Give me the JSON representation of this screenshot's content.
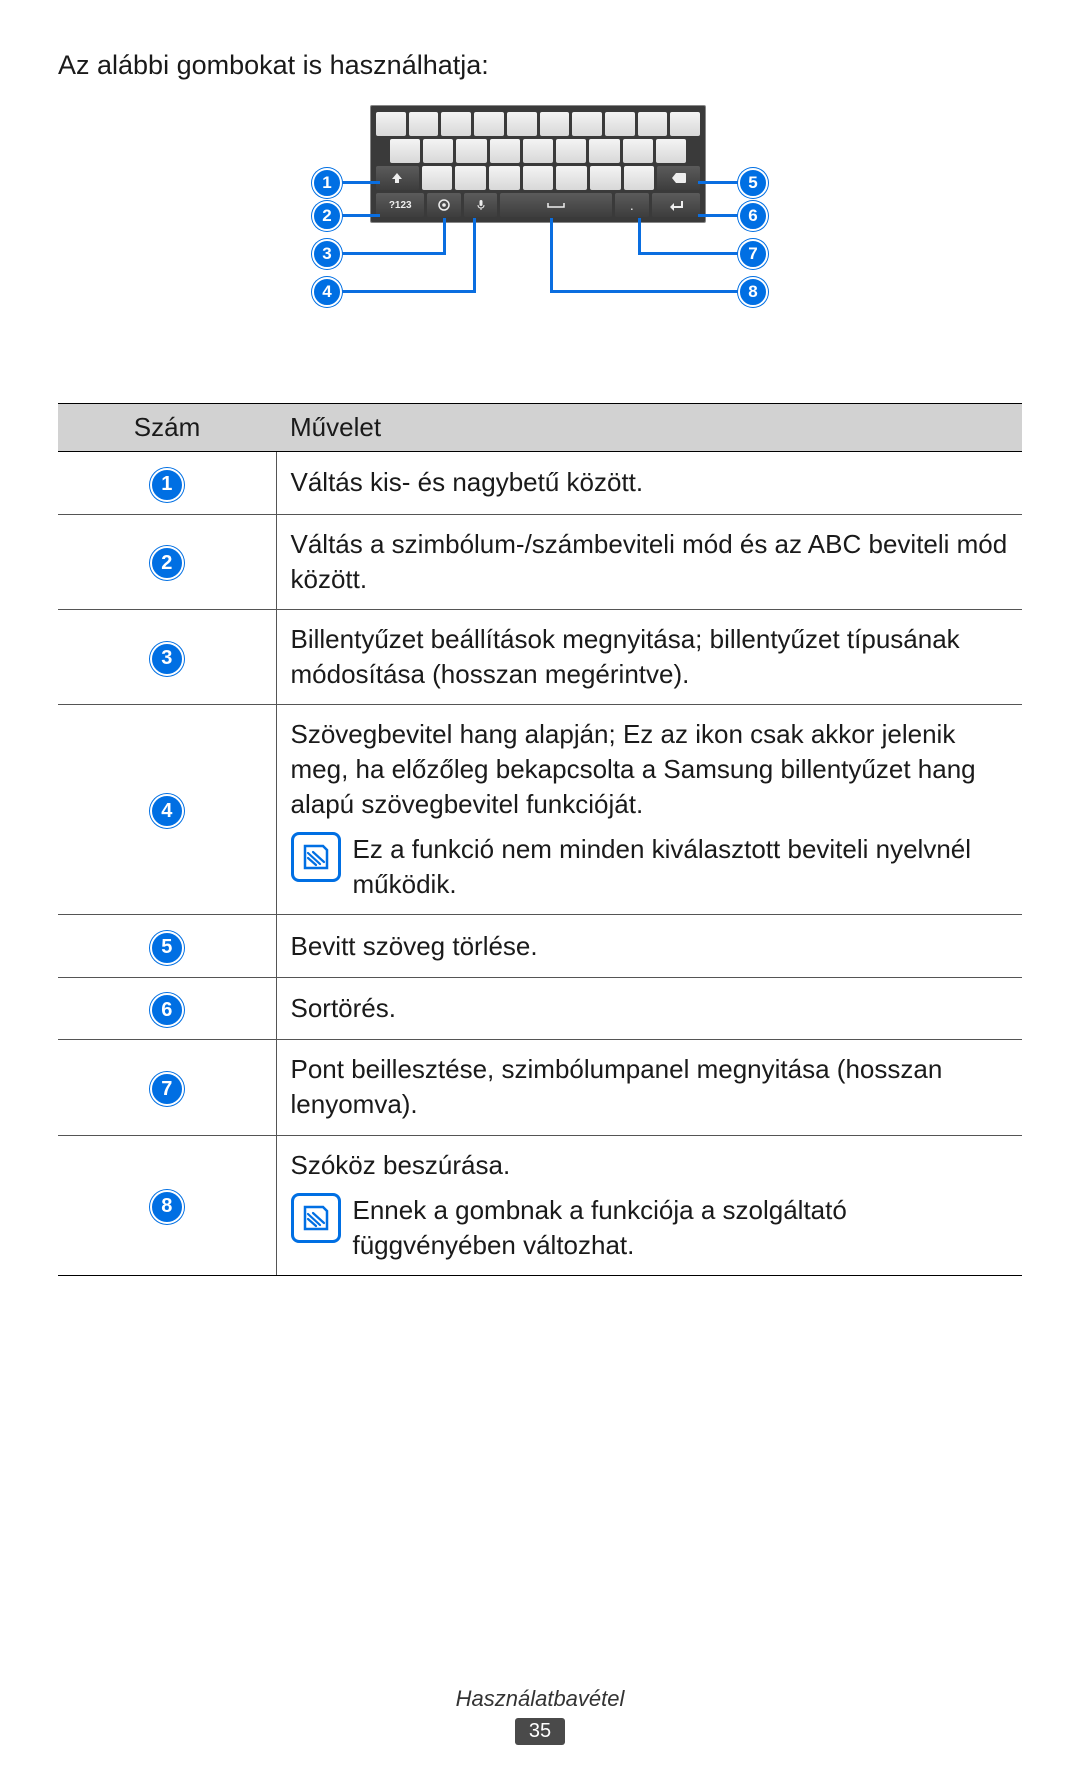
{
  "intro": "Az alábbi gombokat is használhatja:",
  "diagram": {
    "key_sym_label": "?123",
    "callouts": {
      "1": "1",
      "2": "2",
      "3": "3",
      "4": "4",
      "5": "5",
      "6": "6",
      "7": "7",
      "8": "8"
    }
  },
  "table": {
    "header_num": "Szám",
    "header_op": "Művelet",
    "rows": [
      {
        "n": "1",
        "text": "Váltás kis- és nagybetű között."
      },
      {
        "n": "2",
        "text": "Váltás a szimbólum-/számbeviteli mód és az ABC beviteli mód között."
      },
      {
        "n": "3",
        "text": "Billentyűzet beállítások megnyitása; billentyűzet típusának módosítása (hosszan megérintve)."
      },
      {
        "n": "4",
        "text": "Szövegbevitel hang alapján; Ez az ikon csak akkor jelenik meg, ha előzőleg bekapcsolta a Samsung billentyűzet hang alapú szövegbevitel funkcióját.",
        "note": "Ez a funkció nem minden kiválasztott beviteli nyelvnél működik."
      },
      {
        "n": "5",
        "text": "Bevitt szöveg törlése."
      },
      {
        "n": "6",
        "text": "Sortörés."
      },
      {
        "n": "7",
        "text": "Pont beillesztése, szimbólumpanel megnyitása (hosszan lenyomva)."
      },
      {
        "n": "8",
        "text": "Szóköz beszúrása.",
        "note": "Ennek a gombnak a funkciója a szolgáltató függvényében változhat."
      }
    ]
  },
  "footer": {
    "section": "Használatbavétel",
    "page": "35"
  },
  "colors": {
    "accent": "#006fe3",
    "header_bg": "#d2d2d2"
  }
}
